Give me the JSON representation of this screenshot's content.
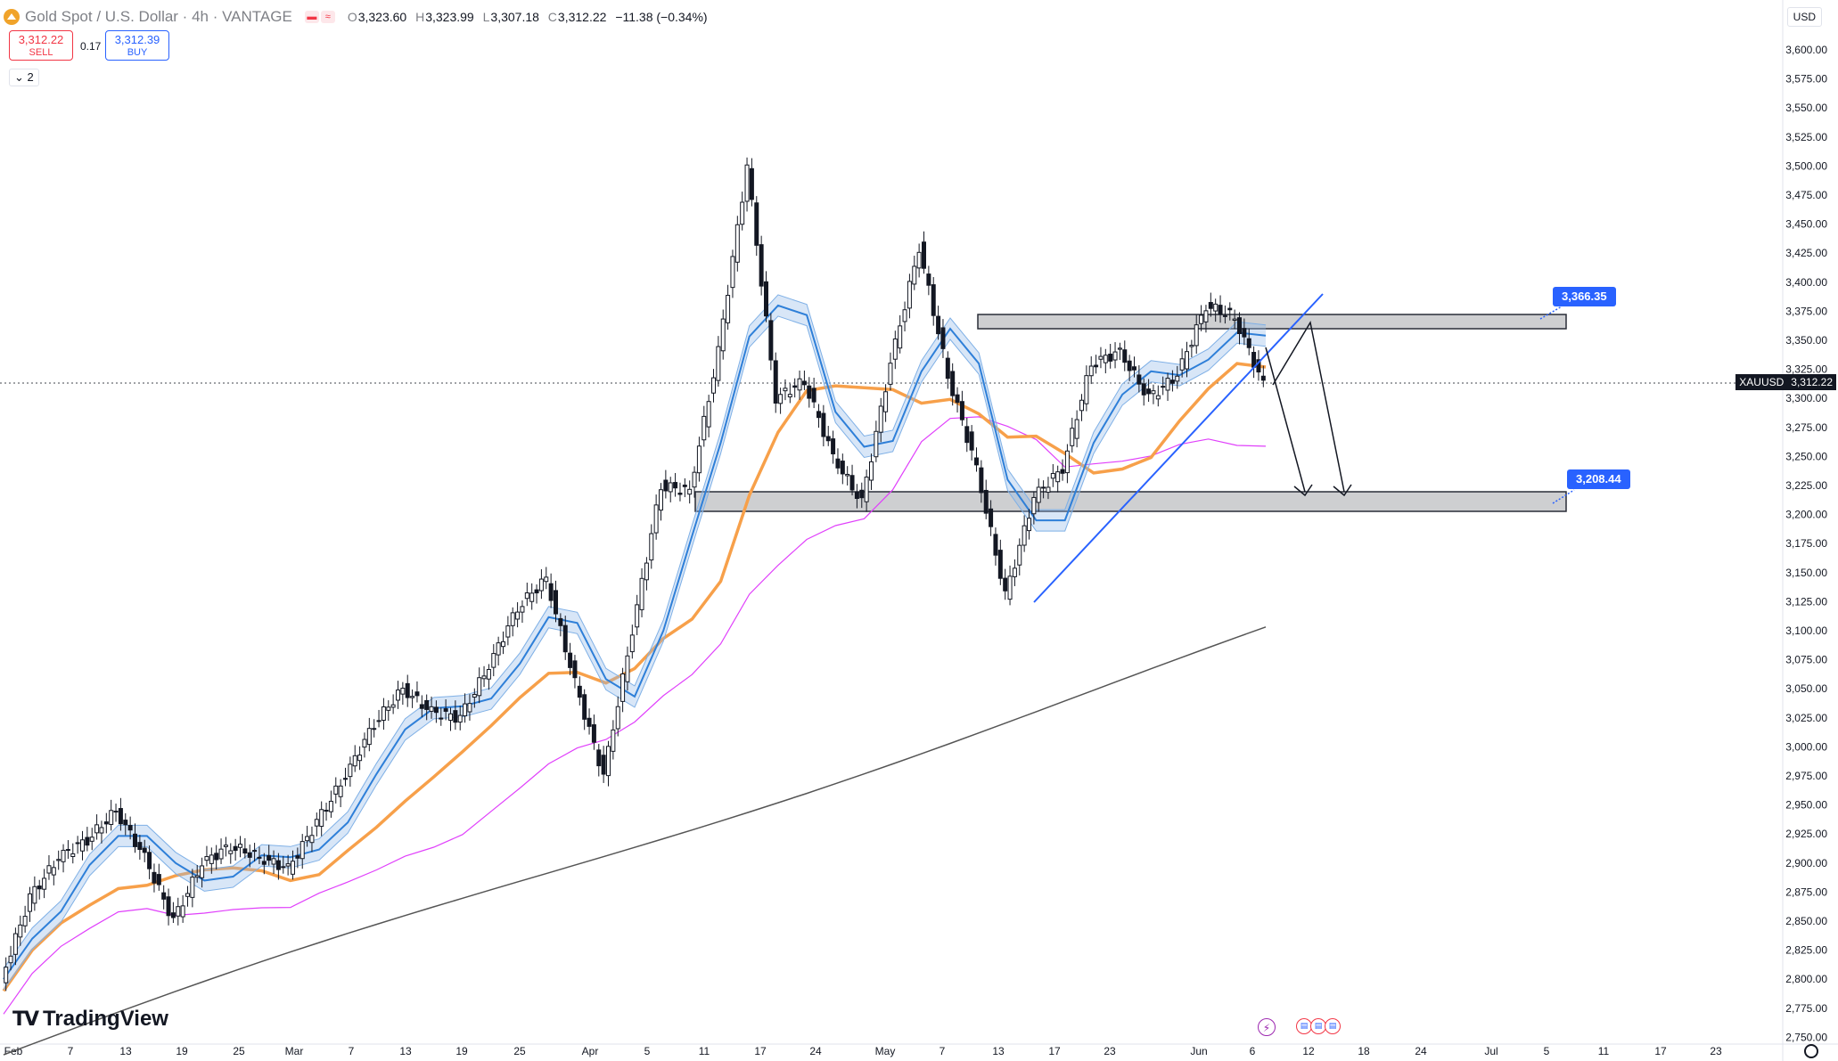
{
  "header": {
    "title": "Gold Spot / U.S. Dollar · 4h · VANTAGE",
    "ohlc": [
      {
        "k": "O",
        "v": "3,323.60"
      },
      {
        "k": "H",
        "v": "3,323.99"
      },
      {
        "k": "L",
        "v": "3,307.18"
      },
      {
        "k": "C",
        "v": "3,312.22"
      }
    ],
    "change": "−11.38 (−0.34%)"
  },
  "trade": {
    "sell_price": "3,312.22",
    "sell_label": "SELL",
    "spread": "0.17",
    "buy_price": "3,312.39",
    "buy_label": "BUY"
  },
  "indicators_count": "2",
  "currency": "USD",
  "last_price": {
    "symbol": "XAUUSD",
    "value": "3,312.22"
  },
  "levels": {
    "upper": "3,366.35",
    "lower": "3,208.44"
  },
  "brand": "TradingView",
  "colors": {
    "up": "#131722",
    "accent": "#2962ff",
    "ema_fast": "#2e7fd8",
    "ema_mid": "#f7a04a",
    "ema_slow": "#e040fb",
    "ema_long": "#555555",
    "zone": "#c9cacd"
  },
  "chart_data": {
    "type": "line",
    "title": "",
    "yrange": [
      2750,
      3600
    ],
    "y_ticks": [
      "3,600.00",
      "3,575.00",
      "3,550.00",
      "3,525.00",
      "3,500.00",
      "3,475.00",
      "3,450.00",
      "3,425.00",
      "3,400.00",
      "3,375.00",
      "3,350.00",
      "3,325.00",
      "3,300.00",
      "3,275.00",
      "3,250.00",
      "3,225.00",
      "3,200.00",
      "3,175.00",
      "3,150.00",
      "3,125.00",
      "3,100.00",
      "3,075.00",
      "3,050.00",
      "3,025.00",
      "3,000.00",
      "2,975.00",
      "2,950.00",
      "2,925.00",
      "2,900.00",
      "2,875.00",
      "2,850.00",
      "2,825.00",
      "2,800.00",
      "2,775.00",
      "2,750.00"
    ],
    "x_ticks": [
      "Feb",
      "7",
      "13",
      "19",
      "25",
      "Mar",
      "7",
      "13",
      "19",
      "25",
      "Apr",
      "5",
      "11",
      "17",
      "24",
      "May",
      "7",
      "13",
      "17",
      "23",
      "Jun",
      "6",
      "12",
      "18",
      "24",
      "Jul",
      "5",
      "11",
      "17",
      "23"
    ],
    "series": [
      {
        "name": "Price",
        "x": [
          0,
          3,
          6,
          9,
          12,
          15,
          18,
          21,
          24,
          27,
          30,
          33,
          36,
          39,
          42,
          45,
          48,
          51,
          54,
          57,
          60,
          63,
          66,
          69,
          72,
          75,
          78,
          81,
          84,
          87,
          90,
          93,
          96,
          99,
          102,
          105,
          108,
          111,
          114,
          117,
          120,
          123,
          126,
          129,
          132
        ],
        "values": [
          2800,
          2870,
          2905,
          2920,
          2945,
          2905,
          2850,
          2900,
          2915,
          2905,
          2895,
          2935,
          2975,
          3020,
          3050,
          3030,
          3025,
          3070,
          3120,
          3145,
          3055,
          2975,
          3100,
          3225,
          3220,
          3340,
          3500,
          3300,
          3315,
          3250,
          3210,
          3330,
          3430,
          3320,
          3240,
          3130,
          3215,
          3240,
          3330,
          3340,
          3300,
          3320,
          3380,
          3370,
          3312
        ]
      },
      {
        "name": "",
        "values": []
      }
    ],
    "levels": [
      3366.35,
      3208.44
    ]
  }
}
